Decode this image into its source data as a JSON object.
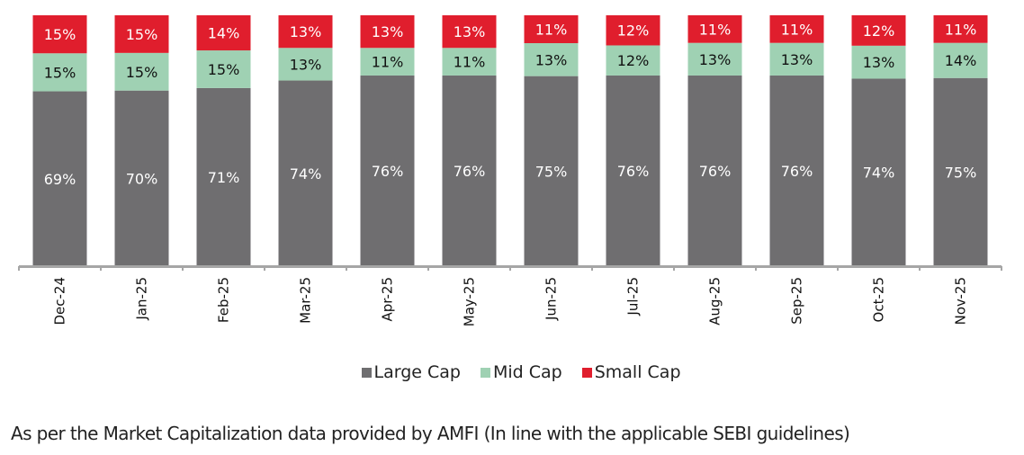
{
  "chart_data": {
    "type": "bar",
    "stacked": true,
    "percent_stacked": true,
    "title": "",
    "xlabel": "",
    "ylabel": "",
    "ylim": [
      0,
      100
    ],
    "grid": false,
    "legend_position": "bottom",
    "categories": [
      "Dec-24",
      "Jan-25",
      "Feb-25",
      "Mar-25",
      "Apr-25",
      "May-25",
      "Jun-25",
      "Jul-25",
      "Aug-25",
      "Sep-25",
      "Oct-25",
      "Nov-25"
    ],
    "series": [
      {
        "name": "Large Cap",
        "color": "#6f6e70",
        "label_color": "#ffffff",
        "values": [
          69,
          70,
          71,
          74,
          76,
          76,
          75,
          76,
          76,
          76,
          74,
          75
        ]
      },
      {
        "name": "Mid Cap",
        "color": "#9fd1b3",
        "label_color": "#111111",
        "values": [
          15,
          15,
          15,
          13,
          11,
          11,
          13,
          12,
          13,
          13,
          13,
          14
        ]
      },
      {
        "name": "Small Cap",
        "color": "#e01e2d",
        "label_color": "#ffffff",
        "values": [
          15,
          15,
          14,
          13,
          13,
          13,
          11,
          12,
          11,
          11,
          12,
          11
        ]
      }
    ],
    "value_suffix": "%"
  },
  "legend": {
    "items": [
      {
        "label": "Large Cap",
        "color": "#6f6e70"
      },
      {
        "label": "Mid Cap",
        "color": "#9fd1b3"
      },
      {
        "label": "Small Cap",
        "color": "#e01e2d"
      }
    ]
  },
  "footnote": "As per the Market Capitalization data provided by AMFI (In line with the applicable SEBI guidelines)"
}
